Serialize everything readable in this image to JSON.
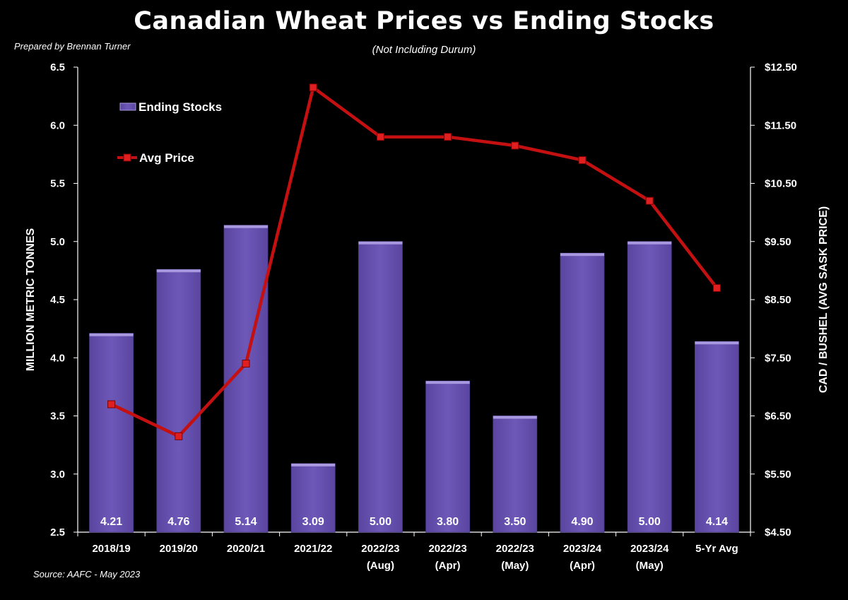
{
  "header": {
    "credit": "Prepared by Brennan Turner",
    "source": "Source: AAFC - May 2023"
  },
  "chart_data": {
    "type": "bar",
    "title": "Canadian Wheat Prices vs Ending Stocks",
    "subtitle": "(Not Including Durum)",
    "categories": [
      [
        "2018/19"
      ],
      [
        "2019/20"
      ],
      [
        "2020/21"
      ],
      [
        "2021/22"
      ],
      [
        "2022/23",
        "(Aug)"
      ],
      [
        "2022/23",
        "(Apr)"
      ],
      [
        "2022/23",
        "(May)"
      ],
      [
        "2023/24",
        "(Apr)"
      ],
      [
        "2023/24",
        "(May)"
      ],
      [
        "5-Yr Avg"
      ]
    ],
    "ylabel": "MILLION METRIC TONNES",
    "y2label": "CAD / BUSHEL (AVG SASK PRICE)",
    "ylim": [
      2.5,
      6.5
    ],
    "yticks": [
      "2.5",
      "3.0",
      "3.5",
      "4.0",
      "4.5",
      "5.0",
      "5.5",
      "6.0",
      "6.5"
    ],
    "y2lim": [
      4.5,
      12.5
    ],
    "y2ticks": [
      "$4.50",
      "$5.50",
      "$6.50",
      "$7.50",
      "$8.50",
      "$9.50",
      "$10.50",
      "$11.50",
      "$12.50"
    ],
    "grid": false,
    "legend_position": "top-left",
    "series": [
      {
        "name": "Ending Stocks",
        "type": "bar",
        "axis": "left",
        "color": "#6a55b0",
        "values": [
          4.21,
          4.76,
          5.14,
          3.09,
          5.0,
          3.8,
          3.5,
          4.9,
          5.0,
          4.14
        ],
        "data_labels": [
          "4.21",
          "4.76",
          "5.14",
          "3.09",
          "5.00",
          "3.80",
          "3.50",
          "4.90",
          "5.00",
          "4.14"
        ]
      },
      {
        "name": "Avg Price",
        "type": "line",
        "axis": "right",
        "color": "#c41010",
        "marker": "square",
        "values": [
          6.7,
          6.15,
          7.4,
          12.15,
          11.3,
          11.3,
          11.15,
          10.9,
          10.2,
          8.7
        ]
      }
    ]
  }
}
